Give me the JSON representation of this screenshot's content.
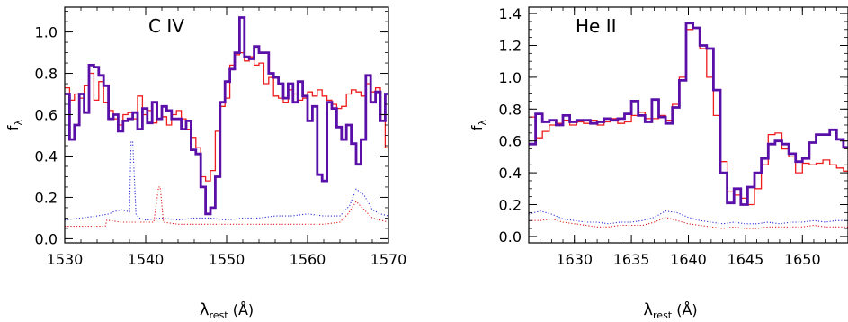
{
  "chart_data": [
    {
      "type": "line",
      "title": "C  IV",
      "xlabel": "λrest (Å)",
      "ylabel": "fλ",
      "xlim": [
        1530,
        1570
      ],
      "ylim": [
        -0.02,
        1.12
      ],
      "xticks": [
        1530,
        1540,
        1550,
        1560,
        1570
      ],
      "xtick_labels": [
        "1530",
        "1540",
        "1550",
        "1560",
        "1570"
      ],
      "yticks": [
        0.0,
        0.2,
        0.4,
        0.6,
        0.8,
        1.0
      ],
      "ytick_labels": [
        "0.0",
        "0.2",
        "0.4",
        "0.6",
        "0.8",
        "1.0"
      ],
      "series": [
        {
          "style": "thick-step",
          "color": "#5a10a8",
          "x": [
            1530,
            1530.6,
            1531.2,
            1531.8,
            1532.4,
            1533.0,
            1533.6,
            1534.2,
            1534.8,
            1535.4,
            1536.0,
            1536.6,
            1537.2,
            1537.8,
            1538.4,
            1539.0,
            1539.6,
            1540.2,
            1540.8,
            1541.4,
            1542.0,
            1542.6,
            1543.2,
            1543.8,
            1544.4,
            1545.0,
            1545.6,
            1546.2,
            1546.8,
            1547.4,
            1548.0,
            1548.6,
            1549.2,
            1549.8,
            1550.4,
            1551.0,
            1551.6,
            1552.2,
            1552.8,
            1553.4,
            1554.0,
            1554.6,
            1555.2,
            1555.8,
            1556.4,
            1557.0,
            1557.6,
            1558.2,
            1558.8,
            1559.4,
            1560.0,
            1560.6,
            1561.2,
            1561.8,
            1562.4,
            1563.0,
            1563.6,
            1564.2,
            1564.8,
            1565.4,
            1566.0,
            1566.6,
            1567.2,
            1567.8,
            1568.4,
            1569.0,
            1569.6
          ],
          "y": [
            0.7,
            0.48,
            0.55,
            0.7,
            0.61,
            0.84,
            0.83,
            0.79,
            0.74,
            0.58,
            0.6,
            0.52,
            0.57,
            0.58,
            0.61,
            0.53,
            0.63,
            0.56,
            0.66,
            0.58,
            0.64,
            0.62,
            0.58,
            0.58,
            0.53,
            0.57,
            0.43,
            0.41,
            0.25,
            0.12,
            0.15,
            0.3,
            0.66,
            0.76,
            0.82,
            0.9,
            1.07,
            0.88,
            0.87,
            0.93,
            0.9,
            0.9,
            0.8,
            0.78,
            0.75,
            0.68,
            0.75,
            0.66,
            0.76,
            0.69,
            0.57,
            0.64,
            0.31,
            0.28,
            0.66,
            0.63,
            0.54,
            0.48,
            0.55,
            0.46,
            0.36,
            0.48,
            0.79,
            0.66,
            0.71,
            0.57,
            0.7
          ]
        },
        {
          "style": "thin-step",
          "color": "#ee1c1c",
          "x": [
            1530,
            1530.6,
            1531.2,
            1531.8,
            1532.4,
            1533.0,
            1533.6,
            1534.2,
            1534.8,
            1535.4,
            1536.0,
            1536.6,
            1537.2,
            1537.8,
            1538.4,
            1539.0,
            1539.6,
            1540.2,
            1540.8,
            1541.4,
            1542.0,
            1542.6,
            1543.2,
            1543.8,
            1544.4,
            1545.0,
            1545.6,
            1546.2,
            1546.8,
            1547.4,
            1548.0,
            1548.6,
            1549.2,
            1549.8,
            1550.4,
            1551.0,
            1551.6,
            1552.2,
            1552.8,
            1553.4,
            1554.0,
            1554.6,
            1555.2,
            1555.8,
            1556.4,
            1557.0,
            1557.6,
            1558.2,
            1558.8,
            1559.4,
            1560.0,
            1560.6,
            1561.2,
            1561.8,
            1562.4,
            1563.0,
            1563.6,
            1564.2,
            1564.8,
            1565.4,
            1566.0,
            1566.6,
            1567.2,
            1567.8,
            1568.4,
            1569.0,
            1569.6
          ],
          "y": [
            0.73,
            0.67,
            0.7,
            0.68,
            0.74,
            0.8,
            0.67,
            0.76,
            0.66,
            0.62,
            0.58,
            0.55,
            0.6,
            0.61,
            0.58,
            0.69,
            0.6,
            0.62,
            0.56,
            0.58,
            0.59,
            0.55,
            0.6,
            0.62,
            0.58,
            0.53,
            0.49,
            0.44,
            0.3,
            0.28,
            0.33,
            0.52,
            0.64,
            0.68,
            0.84,
            0.89,
            0.9,
            0.86,
            0.88,
            0.84,
            0.85,
            0.75,
            0.78,
            0.69,
            0.68,
            0.66,
            0.72,
            0.7,
            0.67,
            0.68,
            0.71,
            0.69,
            0.72,
            0.69,
            0.67,
            0.65,
            0.63,
            0.64,
            0.7,
            0.72,
            0.71,
            0.69,
            0.75,
            0.71,
            0.73,
            0.6,
            0.44
          ]
        },
        {
          "style": "dotted",
          "color": "#3030d8",
          "x": [
            1530,
            1532,
            1534,
            1535.5,
            1536,
            1537,
            1538,
            1538.2,
            1538.4,
            1538.8,
            1539.2,
            1540,
            1542,
            1544,
            1546,
            1548,
            1550,
            1552,
            1554,
            1556,
            1558,
            1560,
            1562,
            1564,
            1565.2,
            1566,
            1567,
            1568,
            1569,
            1570
          ],
          "y": [
            0.09,
            0.1,
            0.11,
            0.12,
            0.13,
            0.14,
            0.13,
            0.47,
            0.47,
            0.12,
            0.1,
            0.09,
            0.1,
            0.09,
            0.1,
            0.1,
            0.09,
            0.1,
            0.1,
            0.11,
            0.11,
            0.12,
            0.11,
            0.11,
            0.16,
            0.24,
            0.21,
            0.14,
            0.12,
            0.11
          ]
        },
        {
          "style": "dotted",
          "color": "#e02020",
          "x": [
            1530,
            1532,
            1534,
            1535,
            1535.2,
            1537,
            1539,
            1541,
            1541.6,
            1541.8,
            1542.2,
            1544,
            1546,
            1548,
            1550,
            1552,
            1554,
            1556,
            1558,
            1560,
            1562,
            1564,
            1565,
            1566,
            1567,
            1568,
            1569,
            1570
          ],
          "y": [
            0.06,
            0.06,
            0.06,
            0.06,
            0.09,
            0.08,
            0.08,
            0.08,
            0.25,
            0.25,
            0.08,
            0.07,
            0.07,
            0.07,
            0.07,
            0.07,
            0.07,
            0.07,
            0.07,
            0.07,
            0.07,
            0.08,
            0.12,
            0.18,
            0.14,
            0.1,
            0.09,
            0.08
          ]
        }
      ]
    },
    {
      "type": "line",
      "title": "He  II",
      "xlabel": "λrest (Å)",
      "ylabel": "fλ",
      "xlim": [
        1626,
        1654
      ],
      "ylim": [
        -0.04,
        1.44
      ],
      "xticks": [
        1630,
        1635,
        1640,
        1645,
        1650
      ],
      "xtick_labels": [
        "1630",
        "1635",
        "1640",
        "1645",
        "1650"
      ],
      "yticks": [
        0.0,
        0.2,
        0.4,
        0.6,
        0.8,
        1.0,
        1.2,
        1.4
      ],
      "ytick_labels": [
        "0.0",
        "0.2",
        "0.4",
        "0.6",
        "0.8",
        "1.0",
        "1.2",
        "1.4"
      ],
      "series": [
        {
          "style": "thick-step",
          "color": "#5a10a8",
          "x": [
            1626.0,
            1626.6,
            1627.2,
            1627.8,
            1628.4,
            1629.0,
            1629.6,
            1630.2,
            1630.8,
            1631.4,
            1632.0,
            1632.6,
            1633.2,
            1633.8,
            1634.4,
            1635.0,
            1635.6,
            1636.2,
            1636.8,
            1637.4,
            1638.0,
            1638.6,
            1639.2,
            1639.8,
            1640.4,
            1641.0,
            1641.6,
            1642.2,
            1642.8,
            1643.4,
            1644.0,
            1644.6,
            1645.2,
            1645.8,
            1646.4,
            1647.0,
            1647.6,
            1648.2,
            1648.8,
            1649.4,
            1650.0,
            1650.6,
            1651.2,
            1651.8,
            1652.4,
            1653.0,
            1653.6
          ],
          "y": [
            0.58,
            0.77,
            0.72,
            0.73,
            0.7,
            0.76,
            0.72,
            0.73,
            0.73,
            0.71,
            0.72,
            0.74,
            0.73,
            0.74,
            0.77,
            0.85,
            0.76,
            0.72,
            0.86,
            0.75,
            0.71,
            0.81,
            0.98,
            1.34,
            1.31,
            1.2,
            1.18,
            0.92,
            0.4,
            0.21,
            0.3,
            0.2,
            0.31,
            0.4,
            0.49,
            0.58,
            0.6,
            0.58,
            0.52,
            0.47,
            0.49,
            0.59,
            0.64,
            0.64,
            0.67,
            0.61,
            0.56
          ]
        },
        {
          "style": "thin-step",
          "color": "#ee1c1c",
          "x": [
            1626.0,
            1626.6,
            1627.2,
            1627.8,
            1628.4,
            1629.0,
            1629.6,
            1630.2,
            1630.8,
            1631.4,
            1632.0,
            1632.6,
            1633.2,
            1633.8,
            1634.4,
            1635.0,
            1635.6,
            1636.2,
            1636.8,
            1637.4,
            1638.0,
            1638.6,
            1639.2,
            1639.8,
            1640.4,
            1641.0,
            1641.6,
            1642.2,
            1642.8,
            1643.4,
            1644.0,
            1644.6,
            1645.2,
            1645.8,
            1646.4,
            1647.0,
            1647.6,
            1648.2,
            1648.8,
            1649.4,
            1650.0,
            1650.6,
            1651.2,
            1651.8,
            1652.4,
            1653.0,
            1653.6
          ],
          "y": [
            0.75,
            0.62,
            0.66,
            0.7,
            0.71,
            0.73,
            0.7,
            0.72,
            0.71,
            0.73,
            0.7,
            0.72,
            0.74,
            0.71,
            0.72,
            0.76,
            0.78,
            0.74,
            0.74,
            0.76,
            0.73,
            0.83,
            1.0,
            1.3,
            1.31,
            1.18,
            1.0,
            0.76,
            0.47,
            0.28,
            0.26,
            0.24,
            0.2,
            0.3,
            0.45,
            0.64,
            0.65,
            0.55,
            0.5,
            0.4,
            0.46,
            0.45,
            0.46,
            0.48,
            0.45,
            0.43,
            0.41
          ]
        },
        {
          "style": "dotted",
          "color": "#3030d8",
          "x": [
            1626,
            1627,
            1628,
            1629,
            1630,
            1631,
            1632,
            1633,
            1634,
            1635,
            1636,
            1637,
            1638,
            1639,
            1640,
            1641,
            1642,
            1643,
            1644,
            1645,
            1646,
            1647,
            1648,
            1649,
            1650,
            1651,
            1652,
            1653,
            1654
          ],
          "y": [
            0.14,
            0.16,
            0.14,
            0.11,
            0.1,
            0.09,
            0.09,
            0.08,
            0.09,
            0.09,
            0.1,
            0.12,
            0.16,
            0.15,
            0.12,
            0.1,
            0.09,
            0.08,
            0.09,
            0.08,
            0.08,
            0.09,
            0.08,
            0.09,
            0.09,
            0.1,
            0.09,
            0.1,
            0.1
          ]
        },
        {
          "style": "dotted",
          "color": "#e02020",
          "x": [
            1626,
            1627,
            1628,
            1629,
            1630,
            1631,
            1632,
            1633,
            1634,
            1635,
            1636,
            1637,
            1638,
            1639,
            1640,
            1641,
            1642,
            1643,
            1644,
            1645,
            1646,
            1647,
            1648,
            1649,
            1650,
            1651,
            1652,
            1653,
            1654
          ],
          "y": [
            0.1,
            0.1,
            0.11,
            0.09,
            0.08,
            0.07,
            0.06,
            0.06,
            0.07,
            0.07,
            0.07,
            0.09,
            0.12,
            0.1,
            0.08,
            0.07,
            0.06,
            0.05,
            0.06,
            0.05,
            0.05,
            0.06,
            0.06,
            0.06,
            0.06,
            0.07,
            0.06,
            0.06,
            0.06
          ]
        }
      ]
    }
  ]
}
